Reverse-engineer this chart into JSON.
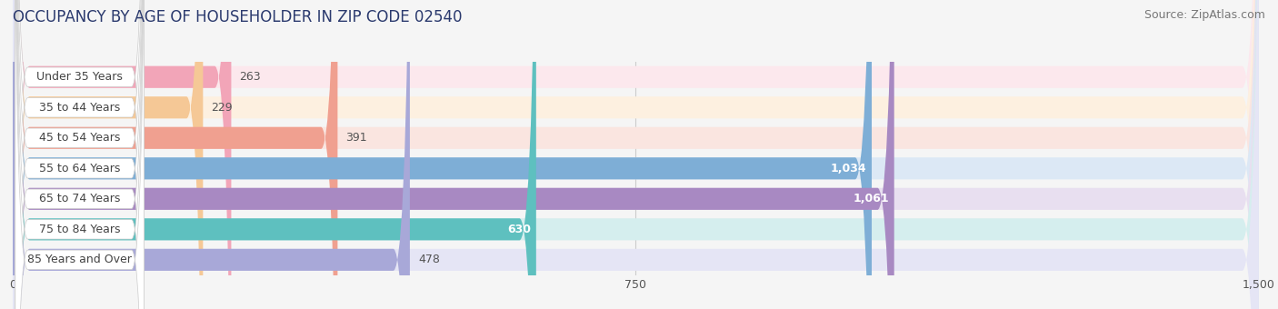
{
  "title": "OCCUPANCY BY AGE OF HOUSEHOLDER IN ZIP CODE 02540",
  "source": "Source: ZipAtlas.com",
  "categories": [
    "Under 35 Years",
    "35 to 44 Years",
    "45 to 54 Years",
    "55 to 64 Years",
    "65 to 74 Years",
    "75 to 84 Years",
    "85 Years and Over"
  ],
  "values": [
    263,
    229,
    391,
    1034,
    1061,
    630,
    478
  ],
  "bar_colors": [
    "#f2a5b8",
    "#f5c896",
    "#f0a090",
    "#7eaed6",
    "#a889c2",
    "#5ec0bf",
    "#a8a8d8"
  ],
  "bar_bg_colors": [
    "#fce8ed",
    "#fdf0e0",
    "#fae5e0",
    "#dce8f5",
    "#e8dff0",
    "#d5eeee",
    "#e5e5f5"
  ],
  "label_color": "#c8c8d0",
  "data_max": 1500,
  "xticks": [
    0,
    750,
    1500
  ],
  "title_fontsize": 12,
  "source_fontsize": 9,
  "background_color": "#f5f5f5",
  "white_label_bg": "#ffffff",
  "white_label_edge": "#cccccc"
}
